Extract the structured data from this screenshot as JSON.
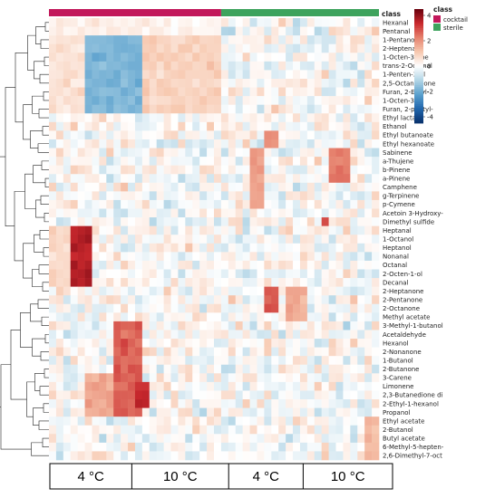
{
  "chart_data": {
    "type": "heatmap",
    "class_annotation_title": "class",
    "classes": [
      {
        "name": "cocktail",
        "color": "#c2185b",
        "columns": 24
      },
      {
        "name": "sterile",
        "color": "#3da35d",
        "columns": 22
      }
    ],
    "column_groups": [
      "4 °C",
      "10 °C",
      "4 °C",
      "10 °C"
    ],
    "colorbar": {
      "ticks": [
        4,
        2,
        0,
        -2,
        -4
      ],
      "min": -4.5,
      "max": 4.5
    },
    "rows": [
      "Hexanal",
      "Pentanal",
      "1-Pentanol",
      "2-Heptenal E",
      "1-Octen-3-one",
      "trans-2-Octenal",
      "1-Penten-3-ol",
      "2,5-Octanedione",
      "Furan, 2-Ethyl-",
      "1-Octen-3-ol",
      "Furan, 2-pentyl-",
      "Ethyl lactate",
      "Ethanol",
      "Ethyl butanoate",
      "Ethyl hexanoate",
      "Sabinene",
      "a-Thujene",
      "b-Pinene",
      "a-Pinene",
      "Camphene",
      "g-Terpinene",
      "p-Cymene",
      "Acetoin 3-Hydroxy-",
      "Dimethyl sulfide",
      "Heptanal",
      "1-Octanol",
      "Heptanol",
      "Nonanal",
      "Octanal",
      "2-Octen-1-ol",
      "Decanal",
      "2-Heptanone",
      "2-Pentanone",
      "2-Octanone",
      "Methyl acetate",
      "3-Methyl-1-butanol",
      "Acetaldehyde",
      "Hexanol",
      "2-Nonanone",
      "1-Butanol",
      "2-Butanone",
      "3-Carene",
      "Limonene",
      "2,3-Butanedione di",
      "2-Ethyl-1-hexanol",
      "Propanol",
      "Ethyl acetate",
      "2-Butanol",
      "Butyl acetate",
      "6-Methyl-5-hepten-",
      "2,6-Dimethyl-7-oct"
    ],
    "ncols": 46,
    "seed": 7
  }
}
